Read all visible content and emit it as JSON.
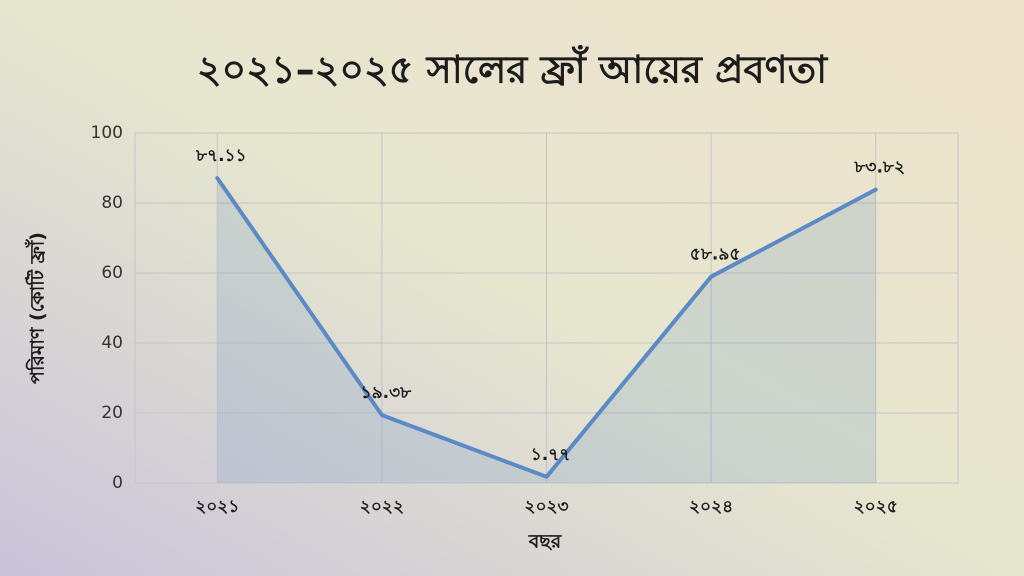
{
  "chart_data": {
    "type": "line",
    "title": "২০২১–২০২৫ সালের ফ্রাঁ আয়ের প্রবণতা",
    "x_label": "বছর",
    "y_label": "পরিমাণ (কোটি ফ্রাঁ)",
    "categories": [
      "২০২১",
      "২০২২",
      "২০২৩",
      "২০২৪",
      "২০২৫"
    ],
    "values": [
      87.11,
      19.38,
      1.77,
      58.95,
      83.82
    ],
    "value_labels": [
      "৮৭.১১",
      "১৯.৩৮",
      "১.৭৭",
      "৫৮.৯৫",
      "৮৩.৮২"
    ],
    "color": "#5b8ac4",
    "area": true,
    "ylim": [
      0,
      100
    ],
    "yticks": [
      0,
      20,
      40,
      60,
      80,
      100
    ],
    "grid": true
  }
}
